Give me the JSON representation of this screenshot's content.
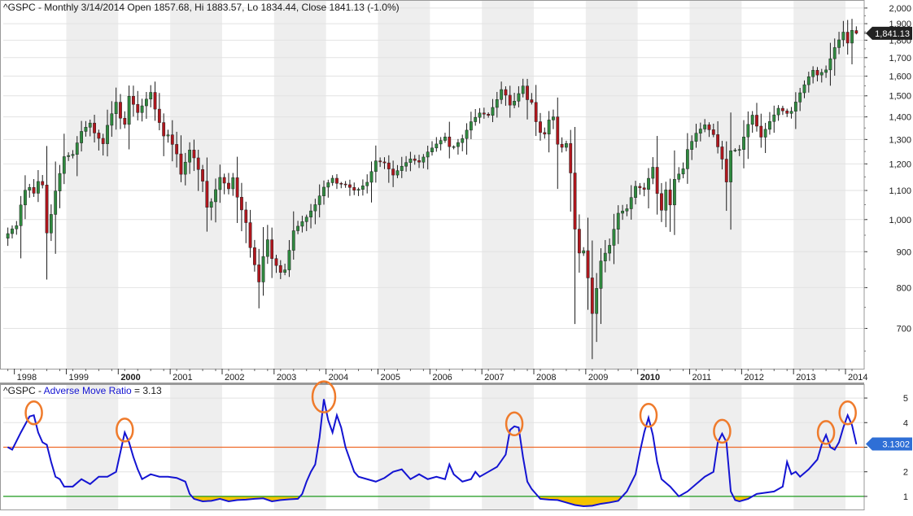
{
  "price_panel": {
    "symbol": "^GSPC",
    "interval": "Monthly",
    "date": "3/14/2014",
    "open_label": "Open",
    "open": "1857.68",
    "high_label": "Hi",
    "high": "1883.57",
    "low_label": "Lo",
    "low": "1834.44",
    "close_label": "Close",
    "close": "1841.13",
    "change": "(-1.0%)",
    "last_price_tag": "1,841.13",
    "header_text": "^GSPC - Monthly 3/14/2014 Open 1857.68, Hi 1883.57, Lo 1834.44, Close 1841.13 (-1.0%)"
  },
  "indicator_panel": {
    "symbol": "^GSPC",
    "name": "Adverse Move Ratio",
    "value": "3.13",
    "last_value_tag": "3.1302",
    "prefix_text": "^GSPC - ",
    "name_text": "Adverse Move Ratio",
    "suffix_text": " = 3.13"
  },
  "colors": {
    "up_candle": "#2f8a3f",
    "down_candle": "#b0161d",
    "wick": "#1a1a1a",
    "indicator_line": "#1414d2",
    "threshold_line": "#ee6a28",
    "baseline_line": "#1c9a1c",
    "fill_below_one": "#f5c300",
    "circle_marker": "#ef7b2c",
    "shade_band": "#eeeeee",
    "grid": "#e2e2e2",
    "tag_bg": "#222222",
    "tag_ind_bg": "#2f6fd6"
  },
  "chart_data": [
    {
      "type": "candlestick",
      "title": "^GSPC - Monthly 3/14/2014 Open 1857.68, Hi 1883.57, Lo 1834.44, Close 1841.13 (-1.0%)",
      "y_scale": "log",
      "ylim": [
        620,
        2010
      ],
      "y_ticks": [
        "2,000",
        "1,900",
        "1,800",
        "1,700",
        "1,600",
        "1,500",
        "1,400",
        "1,300",
        "1,200",
        "1,100",
        "1,000",
        "900",
        "800",
        "700"
      ],
      "x_labels": [
        "1998",
        "1999",
        "2000",
        "2001",
        "2002",
        "2003",
        "2004",
        "2005",
        "2006",
        "2007",
        "2008",
        "2009",
        "2010",
        "2011",
        "2012",
        "2013",
        "2014"
      ],
      "x_labels_bold": [
        "2000",
        "2010"
      ],
      "x_range": [
        "1997-11",
        "2014-03"
      ],
      "shaded_years": [
        "1999",
        "2001",
        "2003",
        "2005",
        "2007",
        "2009",
        "2011",
        "2013"
      ],
      "anchors": [
        [
          "1997-11",
          955
        ],
        [
          "1997-12",
          970
        ],
        [
          "1998-01",
          980
        ],
        [
          "1998-02",
          1049
        ],
        [
          "1998-03",
          1101
        ],
        [
          "1998-04",
          1111
        ],
        [
          "1998-05",
          1090
        ],
        [
          "1998-06",
          1133
        ],
        [
          "1998-07",
          1120
        ],
        [
          "1998-08",
          957
        ],
        [
          "1998-09",
          1017
        ],
        [
          "1998-10",
          1098
        ],
        [
          "1998-11",
          1163
        ],
        [
          "1998-12",
          1229
        ],
        [
          "1999-02",
          1238
        ],
        [
          "1999-04",
          1335
        ],
        [
          "1999-06",
          1372
        ],
        [
          "1999-07",
          1328
        ],
        [
          "1999-09",
          1282
        ],
        [
          "1999-10",
          1362
        ],
        [
          "1999-12",
          1469
        ],
        [
          "2000-01",
          1394
        ],
        [
          "2000-02",
          1366
        ],
        [
          "2000-03",
          1498
        ],
        [
          "2000-05",
          1420
        ],
        [
          "2000-08",
          1517
        ],
        [
          "2000-09",
          1436
        ],
        [
          "2000-11",
          1315
        ],
        [
          "2000-12",
          1320
        ],
        [
          "2001-02",
          1240
        ],
        [
          "2001-03",
          1160
        ],
        [
          "2001-05",
          1256
        ],
        [
          "2001-06",
          1224
        ],
        [
          "2001-08",
          1134
        ],
        [
          "2001-09",
          1041
        ],
        [
          "2001-10",
          1060
        ],
        [
          "2001-12",
          1148
        ],
        [
          "2002-02",
          1106
        ],
        [
          "2002-03",
          1147
        ],
        [
          "2002-04",
          1076
        ],
        [
          "2002-06",
          990
        ],
        [
          "2002-07",
          912
        ],
        [
          "2002-09",
          815
        ],
        [
          "2002-10",
          886
        ],
        [
          "2002-11",
          936
        ],
        [
          "2002-12",
          880
        ],
        [
          "2003-02",
          841
        ],
        [
          "2003-03",
          848
        ],
        [
          "2003-05",
          964
        ],
        [
          "2003-08",
          1008
        ],
        [
          "2003-10",
          1050
        ],
        [
          "2003-12",
          1112
        ],
        [
          "2004-02",
          1145
        ],
        [
          "2004-03",
          1126
        ],
        [
          "2004-05",
          1121
        ],
        [
          "2004-07",
          1101
        ],
        [
          "2004-08",
          1104
        ],
        [
          "2004-10",
          1130
        ],
        [
          "2004-12",
          1212
        ],
        [
          "2005-02",
          1204
        ],
        [
          "2005-04",
          1157
        ],
        [
          "2005-06",
          1191
        ],
        [
          "2005-08",
          1220
        ],
        [
          "2005-10",
          1207
        ],
        [
          "2005-12",
          1248
        ],
        [
          "2006-02",
          1281
        ],
        [
          "2006-04",
          1311
        ],
        [
          "2006-05",
          1270
        ],
        [
          "2006-06",
          1270
        ],
        [
          "2006-08",
          1304
        ],
        [
          "2006-10",
          1378
        ],
        [
          "2006-12",
          1418
        ],
        [
          "2007-02",
          1407
        ],
        [
          "2007-04",
          1482
        ],
        [
          "2007-05",
          1531
        ],
        [
          "2007-06",
          1503
        ],
        [
          "2007-07",
          1455
        ],
        [
          "2007-08",
          1474
        ],
        [
          "2007-10",
          1549
        ],
        [
          "2007-11",
          1481
        ],
        [
          "2007-12",
          1468
        ],
        [
          "2008-01",
          1378
        ],
        [
          "2008-02",
          1330
        ],
        [
          "2008-03",
          1323
        ],
        [
          "2008-04",
          1386
        ],
        [
          "2008-05",
          1400
        ],
        [
          "2008-06",
          1280
        ],
        [
          "2008-07",
          1267
        ],
        [
          "2008-08",
          1283
        ],
        [
          "2008-09",
          1165
        ],
        [
          "2008-10",
          969
        ],
        [
          "2008-11",
          896
        ],
        [
          "2008-12",
          903
        ],
        [
          "2009-01",
          826
        ],
        [
          "2009-02",
          735
        ],
        [
          "2009-03",
          798
        ],
        [
          "2009-04",
          873
        ],
        [
          "2009-06",
          919
        ],
        [
          "2009-08",
          1021
        ],
        [
          "2009-10",
          1036
        ],
        [
          "2009-12",
          1115
        ],
        [
          "2010-02",
          1104
        ],
        [
          "2010-04",
          1187
        ],
        [
          "2010-05",
          1089
        ],
        [
          "2010-06",
          1031
        ],
        [
          "2010-07",
          1102
        ],
        [
          "2010-08",
          1049
        ],
        [
          "2010-09",
          1141
        ],
        [
          "2010-11",
          1181
        ],
        [
          "2010-12",
          1258
        ],
        [
          "2011-02",
          1327
        ],
        [
          "2011-04",
          1364
        ],
        [
          "2011-06",
          1321
        ],
        [
          "2011-08",
          1219
        ],
        [
          "2011-09",
          1131
        ],
        [
          "2011-10",
          1253
        ],
        [
          "2011-12",
          1258
        ],
        [
          "2012-02",
          1366
        ],
        [
          "2012-03",
          1408
        ],
        [
          "2012-05",
          1310
        ],
        [
          "2012-07",
          1379
        ],
        [
          "2012-09",
          1440
        ],
        [
          "2012-11",
          1416
        ],
        [
          "2012-12",
          1426
        ],
        [
          "2013-02",
          1515
        ],
        [
          "2013-04",
          1597
        ],
        [
          "2013-05",
          1631
        ],
        [
          "2013-06",
          1606
        ],
        [
          "2013-08",
          1633
        ],
        [
          "2013-10",
          1757
        ],
        [
          "2013-12",
          1848
        ],
        [
          "2014-01",
          1783
        ],
        [
          "2014-02",
          1859
        ],
        [
          "2014-03",
          1841.13
        ]
      ],
      "last_bar": {
        "open": 1857.68,
        "high": 1883.57,
        "low": 1834.44,
        "close": 1841.13
      }
    },
    {
      "type": "line",
      "title": "^GSPC - Adverse Move Ratio = 3.13",
      "series_name": "Adverse Move Ratio",
      "ylim": [
        0.5,
        5.3
      ],
      "y_ticks": [
        "5",
        "4",
        "3",
        "2",
        "1"
      ],
      "threshold": 3,
      "baseline": 1,
      "last_value": 3.1302,
      "points": [
        [
          "1997-11",
          3.0
        ],
        [
          "1997-12",
          2.9
        ],
        [
          "1998-02",
          3.6
        ],
        [
          "1998-04",
          4.25
        ],
        [
          "1998-05",
          4.3
        ],
        [
          "1998-06",
          3.6
        ],
        [
          "1998-07",
          3.2
        ],
        [
          "1998-08",
          3.1
        ],
        [
          "1998-09",
          2.4
        ],
        [
          "1998-10",
          1.8
        ],
        [
          "1998-11",
          1.7
        ],
        [
          "1998-12",
          1.4
        ],
        [
          "1999-02",
          1.4
        ],
        [
          "1999-04",
          1.7
        ],
        [
          "1999-06",
          1.5
        ],
        [
          "1999-08",
          1.8
        ],
        [
          "1999-10",
          1.8
        ],
        [
          "1999-12",
          2.0
        ],
        [
          "2000-01",
          2.8
        ],
        [
          "2000-02",
          3.6
        ],
        [
          "2000-03",
          3.2
        ],
        [
          "2000-04",
          2.6
        ],
        [
          "2000-05",
          2.1
        ],
        [
          "2000-06",
          1.7
        ],
        [
          "2000-08",
          1.9
        ],
        [
          "2000-10",
          1.8
        ],
        [
          "2000-12",
          1.8
        ],
        [
          "2001-02",
          1.75
        ],
        [
          "2001-04",
          1.6
        ],
        [
          "2001-05",
          1.1
        ],
        [
          "2001-06",
          0.9
        ],
        [
          "2001-08",
          0.8
        ],
        [
          "2001-10",
          0.82
        ],
        [
          "2001-12",
          0.9
        ],
        [
          "2002-02",
          0.8
        ],
        [
          "2002-04",
          0.85
        ],
        [
          "2002-06",
          0.87
        ],
        [
          "2002-08",
          0.9
        ],
        [
          "2002-10",
          0.92
        ],
        [
          "2002-12",
          0.8
        ],
        [
          "2003-02",
          0.85
        ],
        [
          "2003-04",
          0.88
        ],
        [
          "2003-06",
          0.9
        ],
        [
          "2003-07",
          1.1
        ],
        [
          "2003-08",
          1.6
        ],
        [
          "2003-09",
          2.0
        ],
        [
          "2003-10",
          2.3
        ],
        [
          "2003-11",
          3.4
        ],
        [
          "2003-12",
          4.95
        ],
        [
          "2004-01",
          4.1
        ],
        [
          "2004-02",
          3.6
        ],
        [
          "2004-03",
          4.3
        ],
        [
          "2004-04",
          3.8
        ],
        [
          "2004-05",
          3.0
        ],
        [
          "2004-06",
          2.5
        ],
        [
          "2004-07",
          2.0
        ],
        [
          "2004-08",
          1.8
        ],
        [
          "2004-10",
          1.7
        ],
        [
          "2004-12",
          1.6
        ],
        [
          "2005-02",
          1.75
        ],
        [
          "2005-04",
          2.0
        ],
        [
          "2005-06",
          2.1
        ],
        [
          "2005-08",
          1.7
        ],
        [
          "2005-10",
          1.9
        ],
        [
          "2005-12",
          1.7
        ],
        [
          "2006-02",
          1.8
        ],
        [
          "2006-04",
          1.7
        ],
        [
          "2006-05",
          2.3
        ],
        [
          "2006-06",
          1.9
        ],
        [
          "2006-08",
          1.6
        ],
        [
          "2006-10",
          1.7
        ],
        [
          "2006-11",
          2.0
        ],
        [
          "2006-12",
          1.8
        ],
        [
          "2007-02",
          2.0
        ],
        [
          "2007-04",
          2.2
        ],
        [
          "2007-06",
          2.7
        ],
        [
          "2007-07",
          3.7
        ],
        [
          "2007-08",
          3.85
        ],
        [
          "2007-09",
          3.8
        ],
        [
          "2007-10",
          2.6
        ],
        [
          "2007-11",
          1.6
        ],
        [
          "2007-12",
          1.3
        ],
        [
          "2008-01",
          1.1
        ],
        [
          "2008-02",
          0.9
        ],
        [
          "2008-04",
          0.87
        ],
        [
          "2008-06",
          0.85
        ],
        [
          "2008-08",
          0.75
        ],
        [
          "2008-10",
          0.65
        ],
        [
          "2008-12",
          0.6
        ],
        [
          "2009-02",
          0.62
        ],
        [
          "2009-04",
          0.7
        ],
        [
          "2009-06",
          0.75
        ],
        [
          "2009-08",
          0.82
        ],
        [
          "2009-10",
          1.2
        ],
        [
          "2009-12",
          1.9
        ],
        [
          "2010-01",
          2.8
        ],
        [
          "2010-02",
          3.6
        ],
        [
          "2010-03",
          4.2
        ],
        [
          "2010-04",
          3.5
        ],
        [
          "2010-05",
          2.4
        ],
        [
          "2010-06",
          1.7
        ],
        [
          "2010-08",
          1.4
        ],
        [
          "2010-10",
          1.0
        ],
        [
          "2010-12",
          1.2
        ],
        [
          "2011-02",
          1.5
        ],
        [
          "2011-04",
          1.8
        ],
        [
          "2011-06",
          2.0
        ],
        [
          "2011-07",
          3.2
        ],
        [
          "2011-08",
          3.55
        ],
        [
          "2011-09",
          3.2
        ],
        [
          "2011-10",
          1.2
        ],
        [
          "2011-11",
          0.85
        ],
        [
          "2011-12",
          0.8
        ],
        [
          "2012-02",
          0.9
        ],
        [
          "2012-04",
          1.1
        ],
        [
          "2012-06",
          1.15
        ],
        [
          "2012-08",
          1.2
        ],
        [
          "2012-10",
          1.4
        ],
        [
          "2012-11",
          2.4
        ],
        [
          "2012-12",
          1.9
        ],
        [
          "2013-01",
          2.0
        ],
        [
          "2013-02",
          1.8
        ],
        [
          "2013-04",
          2.1
        ],
        [
          "2013-06",
          2.5
        ],
        [
          "2013-07",
          3.1
        ],
        [
          "2013-08",
          3.5
        ],
        [
          "2013-09",
          3.0
        ],
        [
          "2013-10",
          2.9
        ],
        [
          "2013-11",
          3.2
        ],
        [
          "2013-12",
          3.8
        ],
        [
          "2014-01",
          4.3
        ],
        [
          "2014-02",
          3.9
        ],
        [
          "2014-03",
          3.13
        ]
      ],
      "highlighted_peaks": [
        "1998-05",
        "2000-02",
        "2003-12",
        "2007-08",
        "2010-03",
        "2011-08",
        "2013-08",
        "2014-01"
      ]
    }
  ]
}
